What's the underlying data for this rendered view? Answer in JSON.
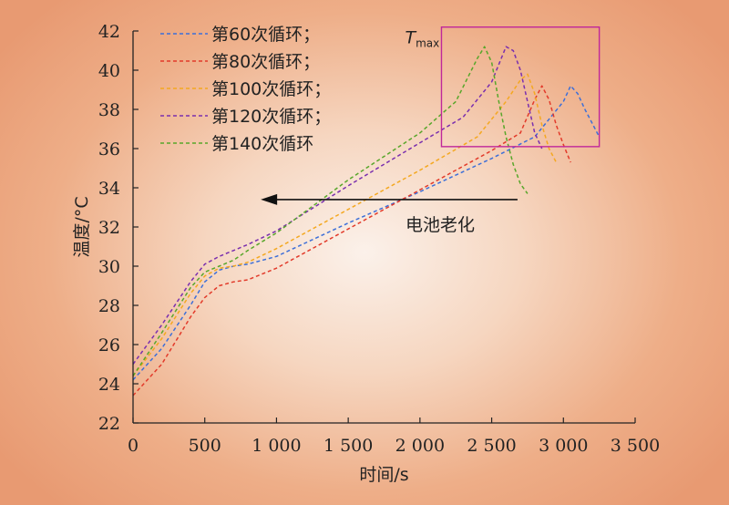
{
  "chart_data": {
    "type": "line",
    "xlabel": "时间/s",
    "ylabel": "温度/°C",
    "xlim": [
      0,
      3500
    ],
    "ylim": [
      22,
      42
    ],
    "x_ticks": [
      0,
      500,
      1000,
      1500,
      2000,
      2500,
      3000,
      3500
    ],
    "x_tick_labels": [
      "0",
      "500",
      "1 000",
      "1 500",
      "2 000",
      "2 500",
      "3 000",
      "3 500"
    ],
    "y_ticks": [
      22,
      24,
      26,
      28,
      30,
      32,
      34,
      36,
      38,
      40,
      42
    ],
    "y_tick_labels": [
      "22",
      "24",
      "26",
      "28",
      "30",
      "32",
      "34",
      "36",
      "38",
      "40",
      "42"
    ],
    "grid": false,
    "legend_position": "top-left",
    "series": [
      {
        "name": "第60次循环；",
        "color": "#3d6fd8",
        "x": [
          0,
          200,
          400,
          500,
          600,
          700,
          800,
          1000,
          1500,
          2000,
          2500,
          2800,
          3000,
          3050,
          3100,
          3150,
          3200,
          3250
        ],
        "y": [
          24.2,
          25.8,
          28.0,
          29.2,
          29.8,
          30.0,
          30.1,
          30.5,
          32.2,
          33.8,
          35.5,
          36.6,
          38.4,
          39.2,
          38.8,
          38.0,
          37.3,
          36.6
        ]
      },
      {
        "name": "第80次循环；",
        "color": "#e23a2a",
        "x": [
          0,
          200,
          400,
          500,
          600,
          700,
          800,
          1000,
          1500,
          2000,
          2500,
          2700,
          2800,
          2850,
          2900,
          2950,
          3000,
          3050
        ],
        "y": [
          23.4,
          25.0,
          27.4,
          28.4,
          29.0,
          29.2,
          29.3,
          29.9,
          31.9,
          33.9,
          35.9,
          36.8,
          38.5,
          39.2,
          38.5,
          37.2,
          36.2,
          35.3
        ]
      },
      {
        "name": "第100次循环；",
        "color": "#f4a820",
        "x": [
          0,
          200,
          400,
          500,
          600,
          700,
          800,
          1000,
          1500,
          2000,
          2400,
          2600,
          2700,
          2750,
          2800,
          2850,
          2900,
          2950
        ],
        "y": [
          24.4,
          26.3,
          28.6,
          29.5,
          29.9,
          30.0,
          30.2,
          30.9,
          32.9,
          34.9,
          36.6,
          38.4,
          39.5,
          39.8,
          38.8,
          37.2,
          36.0,
          35.3
        ]
      },
      {
        "name": "第120次循环；",
        "color": "#7a2fae",
        "x": [
          0,
          200,
          400,
          500,
          600,
          700,
          800,
          1000,
          1500,
          2000,
          2300,
          2500,
          2600,
          2650,
          2700,
          2750,
          2800,
          2850
        ],
        "y": [
          25.0,
          27.0,
          29.2,
          30.1,
          30.5,
          30.8,
          31.1,
          31.8,
          34.1,
          36.3,
          37.6,
          39.4,
          41.2,
          41.0,
          40.0,
          38.4,
          36.8,
          36.0
        ]
      },
      {
        "name": "第140次循环",
        "color": "#58a62a",
        "x": [
          0,
          200,
          400,
          500,
          600,
          700,
          800,
          1000,
          1500,
          2000,
          2250,
          2400,
          2450,
          2500,
          2550,
          2600,
          2650,
          2700,
          2750
        ],
        "y": [
          24.4,
          26.6,
          28.9,
          29.7,
          30.0,
          30.3,
          30.8,
          31.7,
          34.4,
          36.8,
          38.4,
          40.6,
          41.2,
          40.4,
          38.4,
          36.6,
          35.2,
          34.2,
          33.7
        ]
      }
    ],
    "annotations": {
      "arrow_label": "电池老化",
      "tmax_label_main": "T",
      "tmax_label_sub": "max",
      "tmax_color": "#c0279a",
      "arrow_from": [
        2680,
        33.4
      ],
      "arrow_to": [
        890,
        33.4
      ],
      "tmax_box": {
        "x": [
          2150,
          3250
        ],
        "y": [
          36.1,
          42.2
        ]
      }
    }
  }
}
